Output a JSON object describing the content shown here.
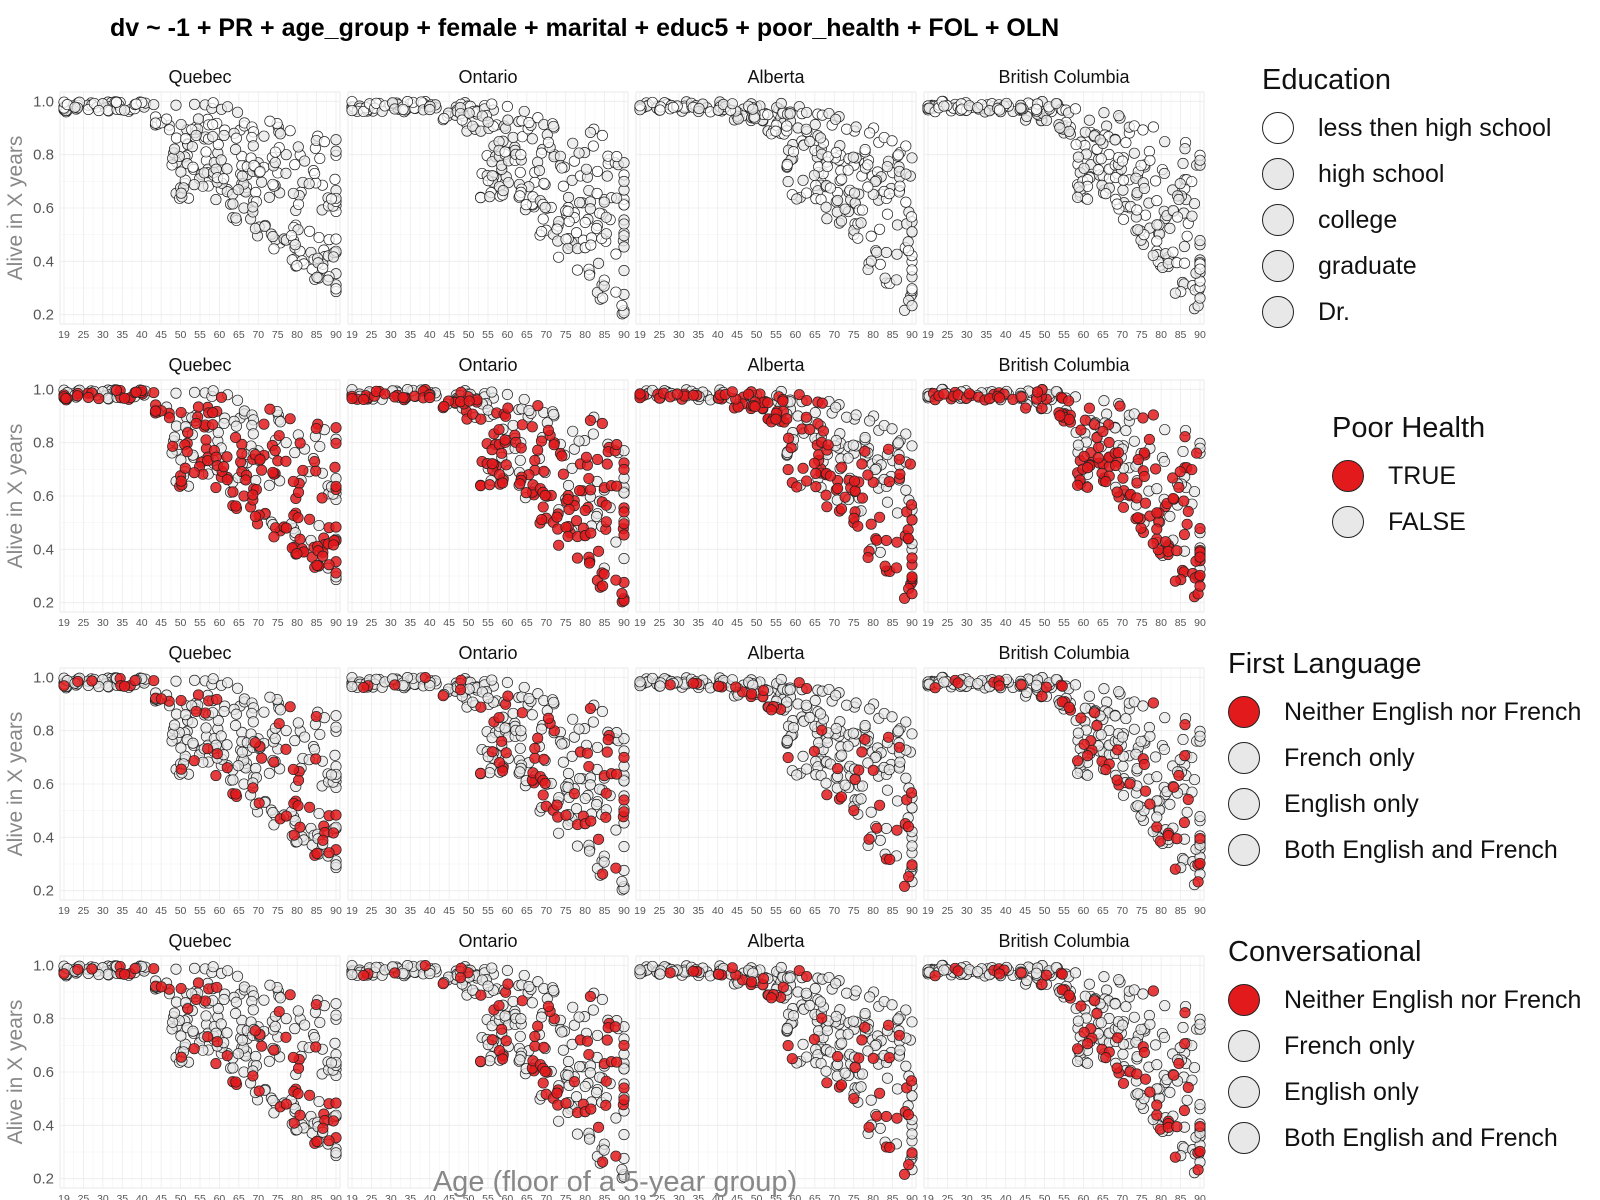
{
  "chart_data": {
    "type": "scatter",
    "title": "dv ~ -1 + PR + age_group + female + marital + educ5 + poor_health + FOL + OLN",
    "xlabel": "Age (floor of a 5-year group)",
    "ylabel": "Alive in X years",
    "x_ticks": [
      "19",
      "25",
      "30",
      "35",
      "40",
      "45",
      "50",
      "55",
      "60",
      "65",
      "70",
      "75",
      "80",
      "85",
      "90"
    ],
    "y_ticks": [
      "1.0",
      "0.8",
      "0.6",
      "0.4",
      "0.2"
    ],
    "ylim": [
      0.18,
      1.02
    ],
    "facets": [
      "Quebec",
      "Ontario",
      "Alberta",
      "British Columbia"
    ],
    "rows": [
      {
        "legend_title": "Education",
        "legend": [
          {
            "label": "less then high school",
            "color": "#ffffff"
          },
          {
            "label": "high school",
            "color": "#e8e8e8"
          },
          {
            "label": "college",
            "color": "#e8e8e8"
          },
          {
            "label": "graduate",
            "color": "#e8e8e8"
          },
          {
            "label": "Dr.",
            "color": "#e8e8e8"
          }
        ],
        "highlight_share": 0.0
      },
      {
        "legend_title": "Poor Health",
        "legend": [
          {
            "label": "TRUE",
            "color": "#e31a1c"
          },
          {
            "label": "FALSE",
            "color": "#e8e8e8"
          }
        ],
        "highlight_share": 0.55
      },
      {
        "legend_title": "First Language",
        "legend": [
          {
            "label": "Neither English nor French",
            "color": "#e31a1c"
          },
          {
            "label": "French only",
            "color": "#e8e8e8"
          },
          {
            "label": "English only",
            "color": "#e8e8e8"
          },
          {
            "label": "Both English and French",
            "color": "#e8e8e8"
          }
        ],
        "highlight_share": 0.18
      },
      {
        "legend_title": "Conversational",
        "legend": [
          {
            "label": "Neither English nor French",
            "color": "#e31a1c"
          },
          {
            "label": "French only",
            "color": "#e8e8e8"
          },
          {
            "label": "English only",
            "color": "#e8e8e8"
          },
          {
            "label": "Both English and French",
            "color": "#e8e8e8"
          }
        ],
        "highlight_share": 0.2
      }
    ],
    "facet_profiles": [
      {
        "facet": "Quebec",
        "knee_age": 50,
        "min_floor_at_90": 0.26
      },
      {
        "facet": "Ontario",
        "knee_age": 55,
        "min_floor_at_90": 0.18
      },
      {
        "facet": "Alberta",
        "knee_age": 60,
        "min_floor_at_90": 0.19
      },
      {
        "facet": "British Columbia",
        "knee_age": 60,
        "min_floor_at_90": 0.19
      }
    ],
    "colors": {
      "highlight": "#e31a1c",
      "base": "#e8e8e8",
      "outline": "#222222",
      "grid": "#ebebeb"
    }
  }
}
